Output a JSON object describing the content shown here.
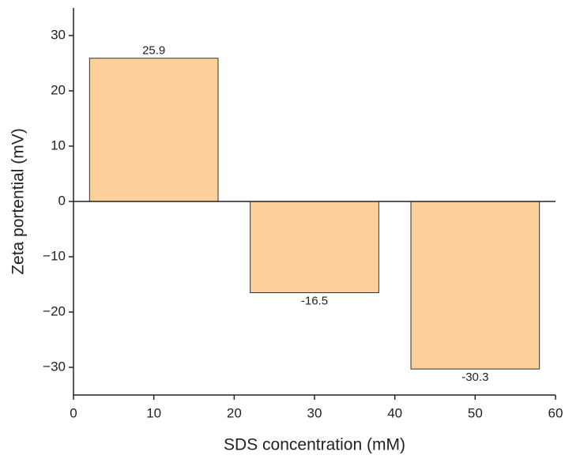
{
  "chart_data": {
    "type": "bar",
    "x_label": "SDS concentration (mM)",
    "y_label": "Zeta portential (mV)",
    "x": [
      10,
      30,
      50
    ],
    "values": [
      25.9,
      -16.5,
      -30.3
    ],
    "color": "#fbd09a",
    "xlim": [
      0,
      60
    ],
    "xticks": [
      0,
      10,
      20,
      30,
      40,
      50,
      60
    ],
    "ylim": [
      -35,
      35
    ],
    "yticks": [
      {
        "value": -30,
        "label": "−30"
      },
      {
        "value": -20,
        "label": "−20"
      },
      {
        "value": -10,
        "label": "−10"
      },
      0,
      10,
      20,
      30
    ],
    "grid": false
  }
}
